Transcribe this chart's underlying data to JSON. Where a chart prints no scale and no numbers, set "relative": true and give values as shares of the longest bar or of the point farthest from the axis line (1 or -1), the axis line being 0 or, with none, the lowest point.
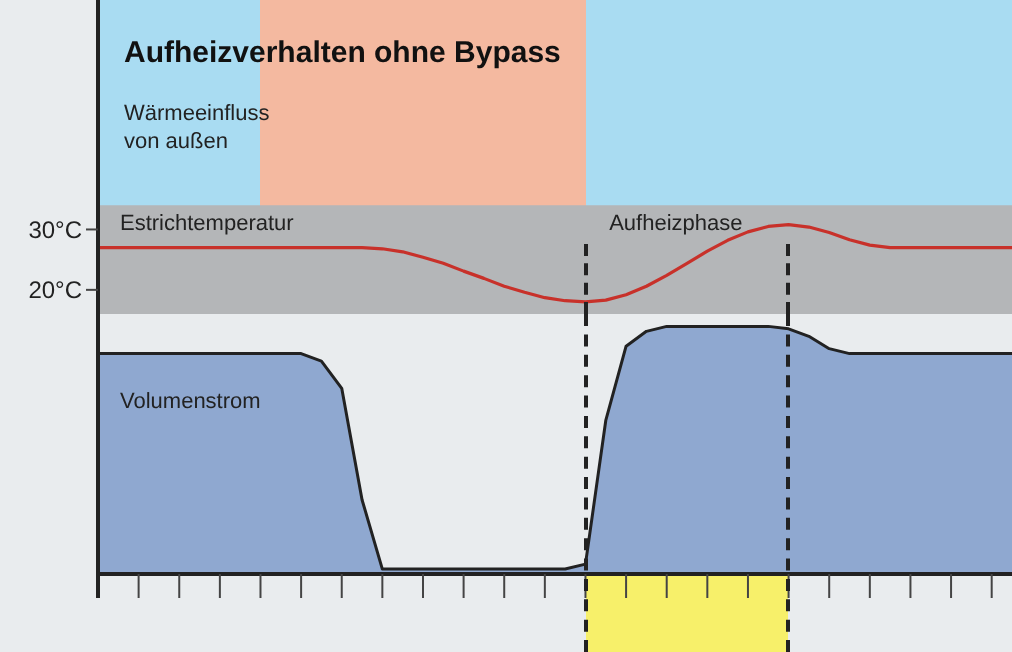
{
  "chart_data": [
    {
      "type": "line",
      "title": "Aufheizverhalten ohne Bypass",
      "ylabel": "Estrichtemperatur",
      "annotations": [
        "Wärmeeinfluss von außen",
        "Aufheizphase"
      ],
      "categories": [
        null,
        null,
        null,
        null,
        null,
        null,
        null,
        null,
        null,
        null,
        null,
        null,
        null,
        null,
        null,
        null,
        null,
        null,
        null,
        null,
        null,
        null,
        null,
        null,
        null,
        null,
        null,
        null,
        null,
        null,
        null,
        null,
        null,
        null,
        null,
        null,
        null,
        null,
        null,
        null,
        null,
        null,
        null,
        null,
        null,
        null
      ],
      "series": [
        {
          "color": "#c8312a",
          "values": [
            27,
            27,
            27,
            27,
            27,
            27,
            27,
            27,
            27,
            27,
            27,
            27,
            27,
            27,
            26.8,
            26.3,
            25.4,
            24.4,
            23.1,
            21.9,
            20.6,
            19.6,
            18.7,
            18.2,
            18,
            18.3,
            19.2,
            20.6,
            22.4,
            24.4,
            26.4,
            28.2,
            29.6,
            30.5,
            30.8,
            30.4,
            29.5,
            28.3,
            27.4,
            27,
            27,
            27,
            27,
            27,
            27,
            27
          ]
        }
      ],
      "ylim": [
        16,
        68
      ],
      "yticks": [
        {
          "value": 30,
          "label": "30°C"
        },
        {
          "value": 20,
          "label": "20°C"
        }
      ],
      "tick_labels": "y",
      "grid": false,
      "bands": [
        {
          "axis": "y",
          "from": 16,
          "to": 34,
          "color": "#b4b6b8"
        }
      ]
    },
    {
      "type": "area",
      "relative": true,
      "ylabel": "Volumenstrom",
      "categories": [
        null,
        null,
        null,
        null,
        null,
        null,
        null,
        null,
        null,
        null,
        null,
        null,
        null,
        null,
        null,
        null,
        null,
        null,
        null,
        null,
        null,
        null,
        null,
        null,
        null,
        null,
        null,
        null,
        null,
        null,
        null,
        null,
        null,
        null,
        null,
        null,
        null,
        null,
        null,
        null,
        null,
        null,
        null,
        null,
        null,
        null
      ],
      "series": [
        {
          "color": "#8fa8d0",
          "values": [
            0.89,
            0.89,
            0.89,
            0.89,
            0.89,
            0.89,
            0.89,
            0.89,
            0.89,
            0.89,
            0.89,
            0.86,
            0.75,
            0.3,
            0.02,
            0.02,
            0.02,
            0.02,
            0.02,
            0.02,
            0.02,
            0.02,
            0.02,
            0.02,
            0.04,
            0.62,
            0.92,
            0.98,
            1,
            1,
            1,
            1,
            1,
            1,
            0.99,
            0.96,
            0.91,
            0.89,
            0.89,
            0.89,
            0.89,
            0.89,
            0.89,
            0.89,
            0.89,
            0.89
          ]
        }
      ],
      "grid": false
    }
  ]
}
